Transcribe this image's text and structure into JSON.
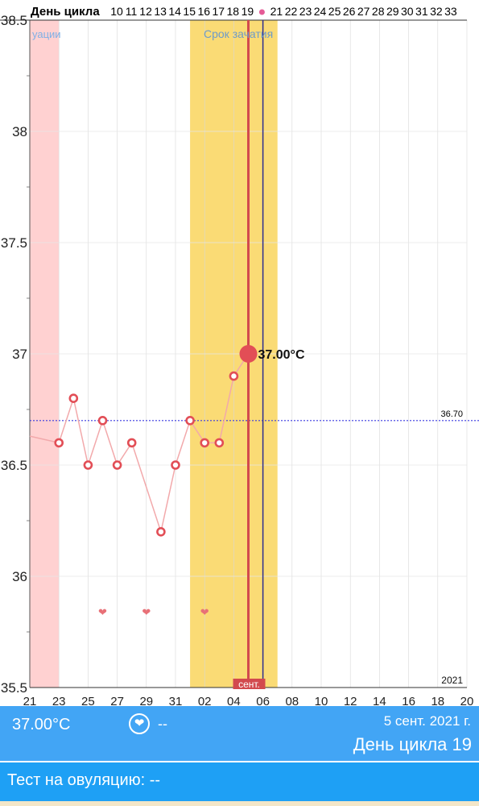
{
  "header": {
    "label": "День цикла",
    "days": [
      "10",
      "11",
      "12",
      "13",
      "14",
      "15",
      "16",
      "17",
      "18",
      "19",
      "",
      "21",
      "22",
      "23",
      "24",
      "25",
      "26",
      "27",
      "28",
      "29",
      "30",
      "31",
      "32",
      "33"
    ]
  },
  "zones": {
    "menstruation_label": "уации",
    "fertile_label": "Срок зачатия"
  },
  "colors": {
    "fertile": "#fadb75",
    "menstruation": "#ffd1d1",
    "point": "#e24e56",
    "line": "#f2a9ab",
    "today_line": "#d24a4e",
    "ovulation_line": "#2d2d8f",
    "coverline": "#3a3ae0",
    "panel": "#42a5f5",
    "test_bar": "#1ea0f5"
  },
  "chart_data": {
    "type": "line",
    "title": "",
    "ylim": [
      35.5,
      38.5
    ],
    "yticks": [
      35.5,
      36,
      36.5,
      37,
      37.5,
      38,
      38.5
    ],
    "xlim": [
      21,
      51
    ],
    "xticks": [
      {
        "x": 21,
        "label": "21"
      },
      {
        "x": 23,
        "label": "23"
      },
      {
        "x": 25,
        "label": "25"
      },
      {
        "x": 27,
        "label": "27"
      },
      {
        "x": 29,
        "label": "29"
      },
      {
        "x": 31,
        "label": "31"
      },
      {
        "x": 33,
        "label": "02"
      },
      {
        "x": 35,
        "label": "04"
      },
      {
        "x": 37,
        "label": "06"
      },
      {
        "x": 39,
        "label": "08"
      },
      {
        "x": 41,
        "label": "10"
      },
      {
        "x": 43,
        "label": "12"
      },
      {
        "x": 45,
        "label": "14"
      },
      {
        "x": 47,
        "label": "16"
      },
      {
        "x": 49,
        "label": "18"
      },
      {
        "x": 51,
        "label": "20"
      }
    ],
    "series": [
      {
        "x": [
          21,
          23,
          24,
          25,
          26,
          27,
          28,
          30,
          31,
          32,
          33,
          34,
          35,
          36
        ],
        "y": [
          36.63,
          36.6,
          36.8,
          36.5,
          36.7,
          36.5,
          36.6,
          36.2,
          36.5,
          36.7,
          36.6,
          36.6,
          36.9,
          37.0
        ]
      }
    ],
    "selected": {
      "x": 36,
      "y": 37.0,
      "label": "37.00°C"
    },
    "coverline": {
      "y": 36.7,
      "label": "36.70"
    },
    "menstruation": [
      21,
      23
    ],
    "fertile": [
      32,
      38
    ],
    "today_x": 36,
    "ovulation_x": 37,
    "hearts": [
      26,
      29,
      33
    ],
    "hearts_y": 35.84,
    "month_label": "сент.",
    "month_x": 36,
    "year_label": "2021"
  },
  "info": {
    "temperature": "37.00°C",
    "heart_icon": "heart-icon",
    "heart_value": "--",
    "date": "5 сент. 2021 г.",
    "cycle_day": "День цикла 19"
  },
  "test": {
    "label": "Тест на овуляцию: --"
  }
}
